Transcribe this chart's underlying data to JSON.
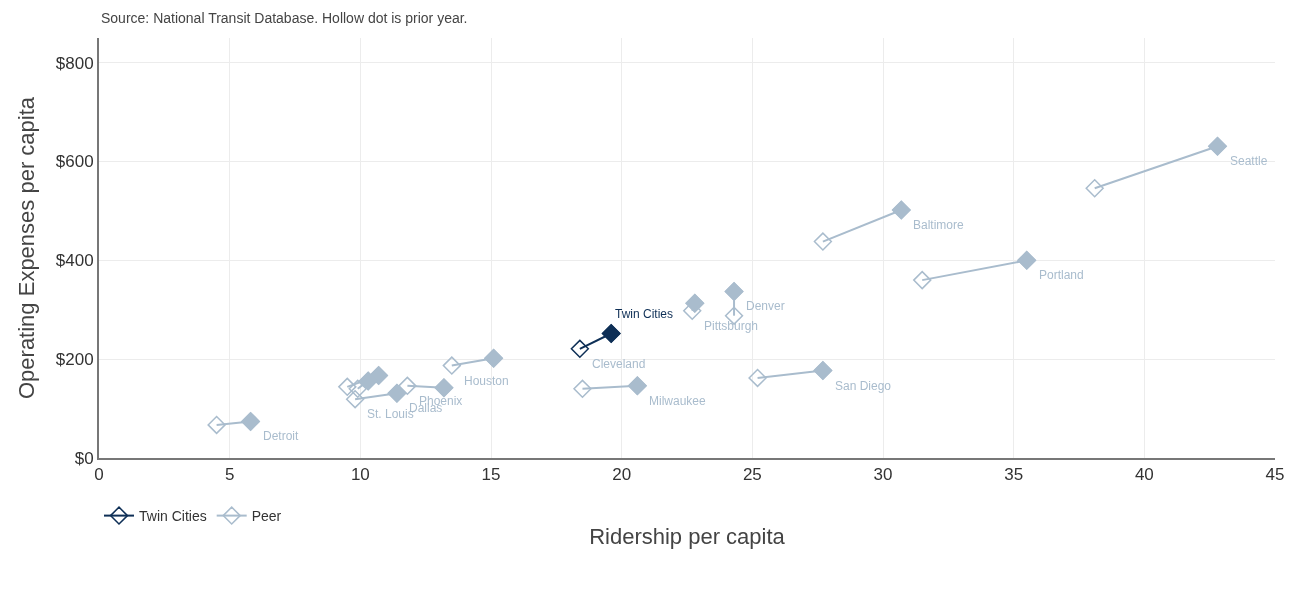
{
  "chart_data": {
    "type": "line",
    "subtitle": "Source: National Transit Database. Hollow dot is prior year.",
    "xlabel": "Ridership per capita",
    "ylabel": "Operating Expenses per capita",
    "series": [
      {
        "name": "Twin Cities",
        "color": "#0e2f56",
        "x": [
          18.4,
          19.6
        ],
        "values": [
          221,
          252
        ]
      },
      {
        "name": "Peer",
        "color": "#a9bccd",
        "x": [
          4.5,
          5.8,
          null,
          9.8,
          11.4,
          null,
          11.8,
          13.2,
          null,
          9.5,
          10.7,
          null,
          9.9,
          10.3,
          null,
          13.5,
          15.1,
          null,
          18.5,
          20.6,
          null,
          22.7,
          22.8,
          null,
          24.3,
          24.3,
          null,
          25.2,
          27.7,
          null,
          27.7,
          30.7,
          null,
          31.5,
          35.5,
          null,
          38.1,
          42.8
        ],
        "values": [
          67,
          74,
          null,
          119,
          131,
          null,
          146,
          142,
          null,
          144,
          167,
          null,
          140,
          156,
          null,
          187,
          202,
          null,
          140,
          146,
          null,
          298,
          313,
          null,
          288,
          337,
          null,
          162,
          177,
          null,
          438,
          502,
          null,
          360,
          400,
          null,
          546,
          631
        ]
      }
    ],
    "annotations": [
      {
        "text": "Detroit",
        "x": 5.8,
        "y": 74
      },
      {
        "text": "St. Louis",
        "x": 9.8,
        "y": 119
      },
      {
        "text": "Dallas",
        "x": 11.4,
        "y": 131
      },
      {
        "text": "Phoenix",
        "x": 11.8,
        "y": 146
      },
      {
        "text": "Houston",
        "x": 13.5,
        "y": 187
      },
      {
        "text": "Cleveland",
        "x": 18.4,
        "y": 221
      },
      {
        "text": "Milwaukee",
        "x": 20.6,
        "y": 146
      },
      {
        "text": "Pittsburgh",
        "x": 22.7,
        "y": 298
      },
      {
        "text": "Denver",
        "x": 24.3,
        "y": 337
      },
      {
        "text": "San Diego",
        "x": 27.7,
        "y": 177
      },
      {
        "text": "Baltimore",
        "x": 30.7,
        "y": 502
      },
      {
        "text": "Portland",
        "x": 35.5,
        "y": 400
      },
      {
        "text": "Seattle",
        "x": 42.8,
        "y": 631
      }
    ],
    "xlim": [
      0,
      45
    ],
    "xticks": [
      0,
      5,
      10,
      15,
      20,
      25,
      30,
      35,
      40,
      45
    ],
    "ylim": [
      0,
      850
    ],
    "yticks": [
      {
        "value": 0,
        "label": "$0"
      },
      {
        "value": 200,
        "label": "$200"
      },
      {
        "value": 400,
        "label": "$400"
      },
      {
        "value": 600,
        "label": "$600"
      },
      {
        "value": 800,
        "label": "$800"
      }
    ],
    "grid": true,
    "legend": "bottom left",
    "marker": "diamond",
    "line_style": "solid"
  }
}
